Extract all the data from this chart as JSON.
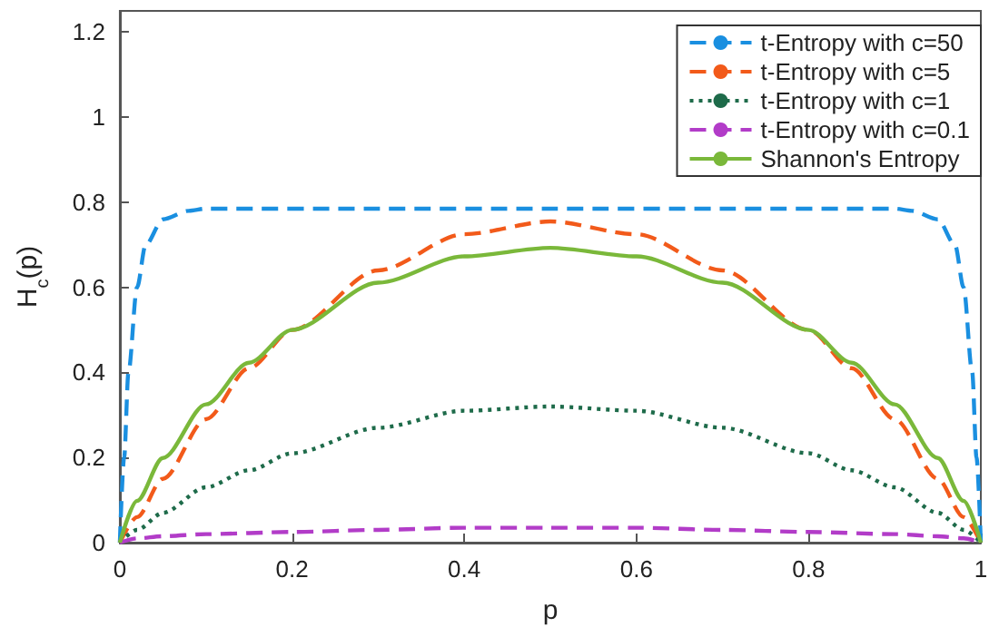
{
  "chart_data": {
    "type": "line",
    "xlabel": "p",
    "ylabel": "H$_{c}$(p)",
    "xlim": [
      0,
      1
    ],
    "xticks": [
      0,
      0.2,
      0.4,
      0.6,
      0.8,
      1
    ],
    "ylim": [
      0,
      1.25
    ],
    "yticks": [
      0,
      0.2,
      0.4,
      0.6,
      0.8,
      1,
      1.2
    ],
    "grid": false,
    "legend": "top right",
    "marker": "none",
    "series": [
      {
        "name": "t-Entropy with c=50",
        "color": "#1a8fe0",
        "line_style": "dashed",
        "x": [
          0,
          0.005,
          0.01,
          0.02,
          0.03,
          0.05,
          0.08,
          0.1,
          0.3,
          0.5,
          0.7,
          0.9,
          0.92,
          0.95,
          0.97,
          0.98,
          0.99,
          0.995,
          1
        ],
        "values": [
          0,
          0.2,
          0.4,
          0.6,
          0.7,
          0.76,
          0.78,
          0.785,
          0.785,
          0.785,
          0.785,
          0.785,
          0.78,
          0.76,
          0.7,
          0.6,
          0.4,
          0.2,
          0
        ]
      },
      {
        "name": "t-Entropy with c=5",
        "color": "#f25a1a",
        "line_style": "dashed",
        "x": [
          0,
          0.02,
          0.05,
          0.1,
          0.15,
          0.2,
          0.3,
          0.4,
          0.5,
          0.6,
          0.7,
          0.8,
          0.85,
          0.9,
          0.95,
          0.98,
          1
        ],
        "values": [
          0,
          0.06,
          0.15,
          0.29,
          0.41,
          0.5,
          0.64,
          0.725,
          0.755,
          0.725,
          0.64,
          0.5,
          0.41,
          0.29,
          0.15,
          0.06,
          0
        ]
      },
      {
        "name": "t-Entropy with c=1",
        "color": "#1e6b4a",
        "line_style": "dotted",
        "x": [
          0,
          0.02,
          0.05,
          0.1,
          0.15,
          0.2,
          0.3,
          0.4,
          0.5,
          0.6,
          0.7,
          0.8,
          0.85,
          0.9,
          0.95,
          0.98,
          1
        ],
        "values": [
          0,
          0.03,
          0.07,
          0.13,
          0.17,
          0.21,
          0.27,
          0.31,
          0.32,
          0.31,
          0.27,
          0.21,
          0.17,
          0.13,
          0.07,
          0.03,
          0
        ]
      },
      {
        "name": "t-Entropy with c=0.1",
        "color": "#b23cc8",
        "line_style": "dashed",
        "x": [
          0,
          0.02,
          0.05,
          0.1,
          0.2,
          0.3,
          0.4,
          0.5,
          0.6,
          0.7,
          0.8,
          0.9,
          0.95,
          0.98,
          1
        ],
        "values": [
          0,
          0.01,
          0.015,
          0.02,
          0.025,
          0.03,
          0.035,
          0.035,
          0.035,
          0.03,
          0.025,
          0.02,
          0.015,
          0.01,
          0
        ]
      },
      {
        "name": "Shannon's Entropy",
        "color": "#7ab83a",
        "line_style": "solid",
        "x": [
          0,
          0.02,
          0.05,
          0.1,
          0.15,
          0.2,
          0.3,
          0.4,
          0.5,
          0.6,
          0.7,
          0.8,
          0.85,
          0.9,
          0.95,
          0.98,
          1
        ],
        "values": [
          0,
          0.098,
          0.199,
          0.325,
          0.423,
          0.5,
          0.611,
          0.673,
          0.693,
          0.673,
          0.611,
          0.5,
          0.423,
          0.325,
          0.199,
          0.098,
          0
        ]
      }
    ]
  }
}
